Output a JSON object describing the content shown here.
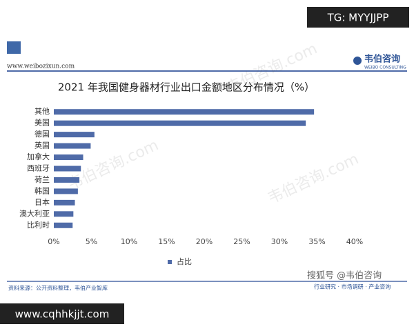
{
  "chart_data": {
    "type": "bar",
    "orientation": "horizontal",
    "title": "2021 年我国健身器材行业出口金额地区分布情况（%）",
    "categories": [
      "其他",
      "美国",
      "德国",
      "英国",
      "加拿大",
      "西班牙",
      "荷兰",
      "韩国",
      "日本",
      "澳大利亚",
      "比利时"
    ],
    "series": [
      {
        "name": "占比",
        "color": "#4f6ba8",
        "values": [
          34.6,
          33.5,
          5.4,
          4.9,
          3.9,
          3.6,
          3.4,
          3.2,
          2.8,
          2.6,
          2.5
        ]
      }
    ],
    "xlim": [
      0,
      40
    ],
    "xticks": [
      {
        "value": 0,
        "label": "0%"
      },
      {
        "value": 5,
        "label": "5%"
      },
      {
        "value": 10,
        "label": "10%"
      },
      {
        "value": 15,
        "label": "15%"
      },
      {
        "value": 20,
        "label": "20%"
      },
      {
        "value": 25,
        "label": "25%"
      },
      {
        "value": 30,
        "label": "30%"
      },
      {
        "value": 35,
        "label": "35%"
      },
      {
        "value": 40,
        "label": "40%"
      }
    ],
    "legend": "bottom"
  },
  "page": {
    "overlay_top": "TG: MYYJJPP",
    "site": "www.weibozixun.com",
    "logo": "韦伯咨询",
    "logo_sub": "WEIBO CONSULTING",
    "watermark": "韦伯咨询.com",
    "source": "资料来源：公开资料整理，韦伯产业智库",
    "platform": "搜狐号 @韦伯咨询",
    "slogan": "行业研究 · 市场调研 · 产业咨询",
    "overlay_bottom": "www.cqhhkjjt.com"
  }
}
